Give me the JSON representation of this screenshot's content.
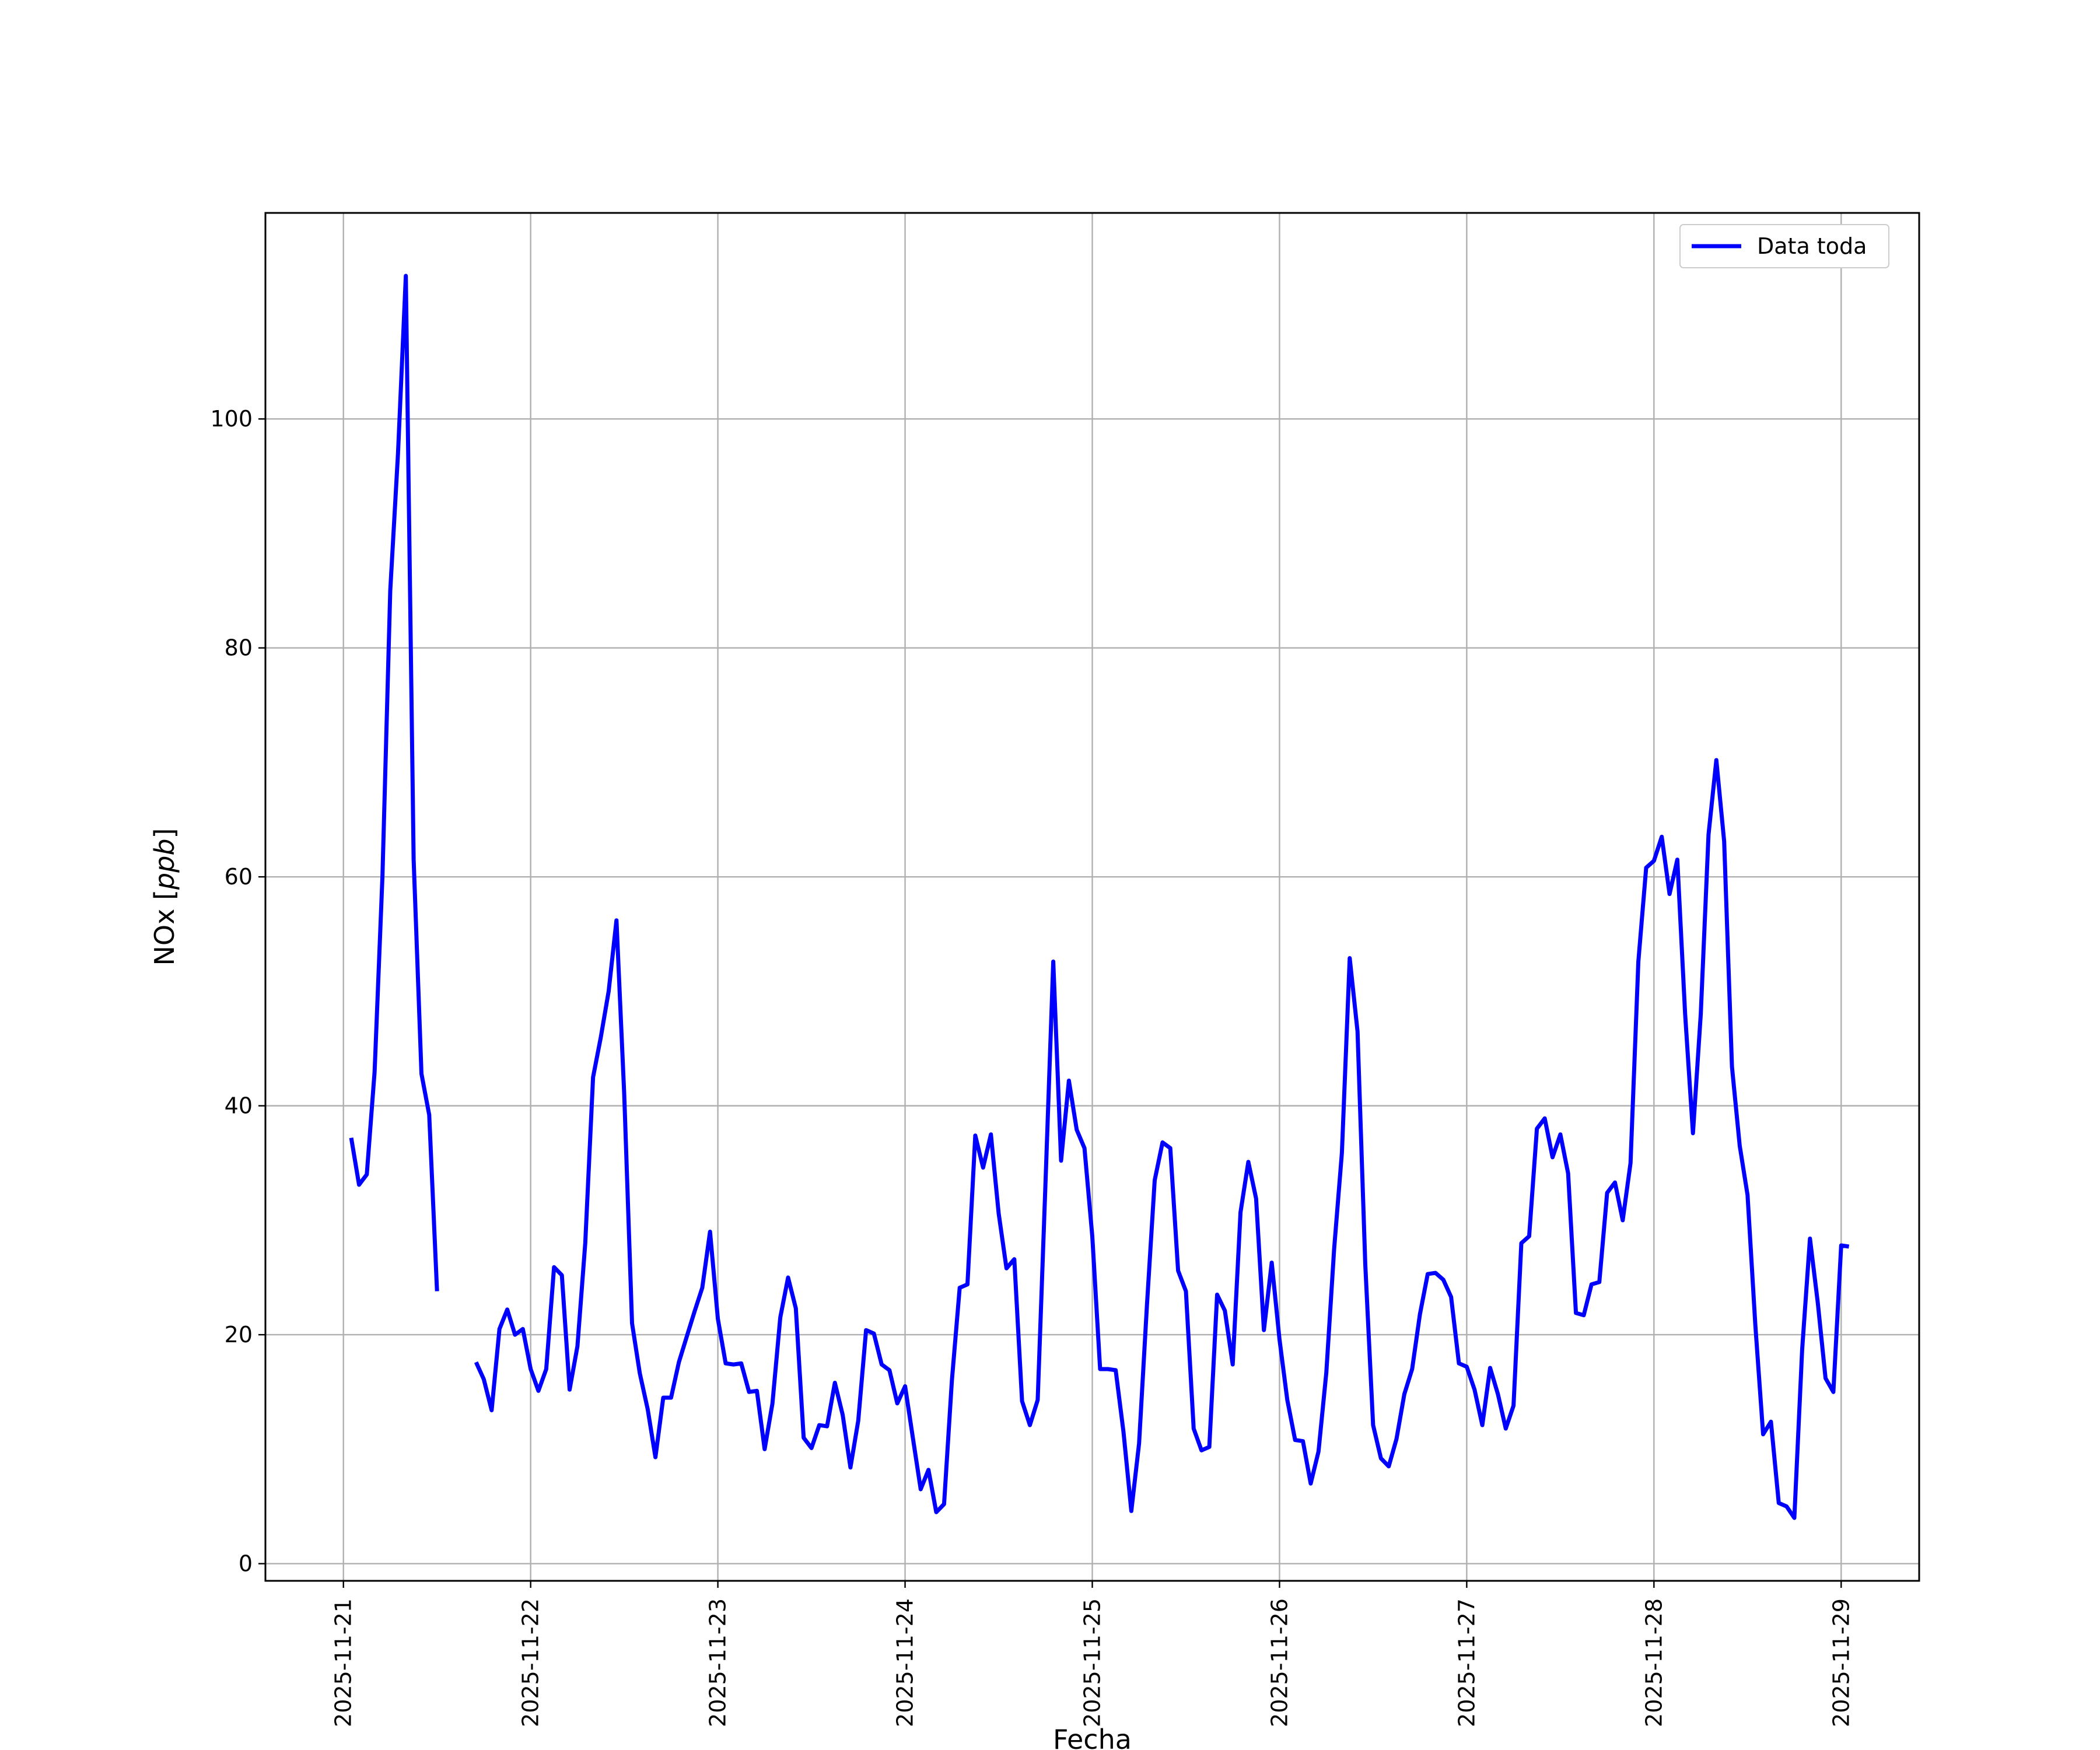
{
  "chart_data": {
    "type": "line",
    "xlabel": "Fecha",
    "ylabel_main": "NOx [",
    "ylabel_unit": "ppb",
    "ylabel_end": "]",
    "xlim": [
      "2025-11-20T14:00",
      "2025-11-29T10:00"
    ],
    "ylim": [
      -1.5,
      118
    ],
    "grid": true,
    "legend_position": "top-right",
    "x_ticks": [
      "2025-11-21",
      "2025-11-22",
      "2025-11-23",
      "2025-11-24",
      "2025-11-25",
      "2025-11-26",
      "2025-11-27",
      "2025-11-28",
      "2025-11-29"
    ],
    "y_ticks": [
      0,
      20,
      40,
      60,
      80,
      100
    ],
    "series": [
      {
        "name": "Data toda",
        "color": "#0000ff",
        "x_start": "2025-11-21T01:00",
        "step_hours": 1,
        "values": [
          37.2,
          33.1,
          34,
          43,
          60,
          85,
          97,
          112.5,
          61.5,
          42.8,
          39.2,
          23.8,
          null,
          null,
          null,
          null,
          17.6,
          16.1,
          13.4,
          20.5,
          22.2,
          20,
          20.5,
          17,
          15.1,
          17,
          25.9,
          25.2,
          15.2,
          19,
          28,
          42.5,
          46,
          50,
          56.2,
          41,
          21,
          16.6,
          13.5,
          9.3,
          14.5,
          14.5,
          17.6,
          19.8,
          22,
          24.1,
          29,
          21.4,
          17.5,
          17.4,
          17.5,
          15,
          15.1,
          10,
          14,
          21.5,
          25,
          22.3,
          11,
          10.1,
          12.1,
          12,
          15.8,
          13,
          8.4,
          12.5,
          20.4,
          20.1,
          17.4,
          16.9,
          14,
          15.5,
          11,
          6.5,
          8.2,
          4.5,
          5.2,
          16,
          24.1,
          24.4,
          37.4,
          34.6,
          37.5,
          30.6,
          25.8,
          26.6,
          14.2,
          12.1,
          14.3,
          33.3,
          52.6,
          35.2,
          42.2,
          37.9,
          36.3,
          28.6,
          17,
          17,
          16.9,
          11.5,
          4.6,
          10.5,
          22.5,
          33.5,
          36.8,
          36.3,
          25.6,
          23.8,
          11.8,
          9.9,
          10.2,
          23.5,
          22.1,
          17.4,
          30.7,
          35.1,
          31.9,
          20.4,
          26.3,
          19.6,
          14.3,
          10.8,
          10.7,
          7,
          9.8,
          16.7,
          27.5,
          35.9,
          52.9,
          46.5,
          26.1,
          12.1,
          9.2,
          8.5,
          10.9,
          14.8,
          17,
          21.8,
          25.3,
          25.4,
          24.8,
          23.3,
          17.5,
          17.2,
          15.2,
          12.1,
          17.1,
          14.8,
          11.8,
          13.8,
          28,
          28.6,
          38,
          38.9,
          35.5,
          37.5,
          34.1,
          21.9,
          21.7,
          24.4,
          24.6,
          32.4,
          33.3,
          30,
          35,
          52.6,
          60.8,
          61.4,
          63.5,
          58.5,
          61.5,
          48,
          37.6,
          48,
          63.7,
          70.2,
          63.1,
          43.4,
          36.5,
          32.2,
          20.8,
          11.3,
          12.4,
          5.3,
          5,
          4,
          18.7,
          28.4,
          22.8,
          16.2,
          15,
          27.8,
          27.7
        ]
      }
    ]
  }
}
